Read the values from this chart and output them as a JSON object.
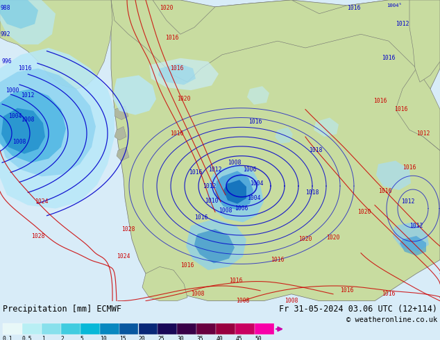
{
  "title_left": "Precipitation [mm] ECMWF",
  "title_right": "Fr 31-05-2024 03.06 UTC (12+114)",
  "copyright": "© weatheronline.co.uk",
  "colorbar_labels": [
    "0.1",
    "0.5",
    "1",
    "2",
    "5",
    "10",
    "15",
    "20",
    "25",
    "30",
    "35",
    "40",
    "45",
    "50"
  ],
  "colorbar_colors": [
    "#e8f8f8",
    "#b8eff4",
    "#88e0ec",
    "#40cce0",
    "#08b8d8",
    "#0888c0",
    "#0858a0",
    "#082878",
    "#180858",
    "#380048",
    "#680040",
    "#980040",
    "#c80060",
    "#f800a8"
  ],
  "fig_width": 6.34,
  "fig_height": 4.9,
  "dpi": 100,
  "legend_bg": "#e0e0e0",
  "ocean_color": "#c8dff0",
  "land_color": "#c8dca0",
  "precip_light": "#b8dff0",
  "precip_mid": "#70c0e0",
  "precip_dark": "#3090c8",
  "isobar_blue": "#0000cc",
  "isobar_red": "#cc0000"
}
